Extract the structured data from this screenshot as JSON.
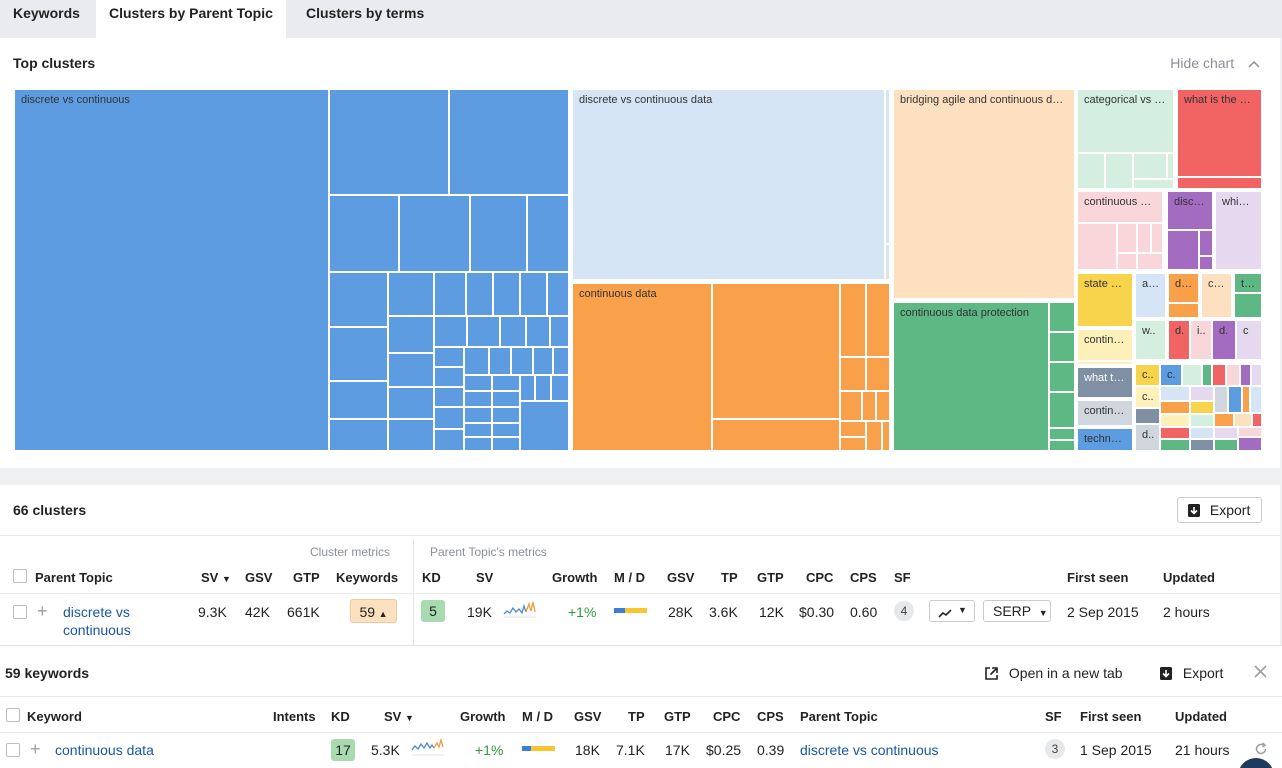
{
  "tabs": {
    "keywords": "Keywords",
    "clusters_parent": "Clusters by Parent Topic",
    "clusters_terms": "Clusters by terms"
  },
  "chart": {
    "title": "Top clusters",
    "hide_label": "Hide chart",
    "labels": {
      "t1": "discrete vs continuous",
      "t2": "discrete vs continuous data",
      "t3": "continuous data",
      "t4": "bridging agile and continuous d…",
      "t5": "continuous data protection",
      "t6": "categorical vs …",
      "t7": "what is the …",
      "t8": "continuous …",
      "t9": "disc…",
      "t10": "whi…",
      "t11": "state …",
      "t12": "a…",
      "t13": "d…",
      "t14": "c…",
      "t15": "t…",
      "t16": "contin…",
      "t17": "w..",
      "t18": "d.",
      "t19": "i..",
      "t20": "d.",
      "t21": "c",
      "t22": "what t…",
      "t23": "c..",
      "t24": "c.",
      "t25": "contin…",
      "t26": "c..",
      "t27": "techn…",
      "t28": "d.."
    }
  },
  "clusters": {
    "count_label": "66 clusters",
    "export_label": "Export",
    "cluster_metrics_label": "Cluster metrics",
    "pt_metrics_label": "Parent Topic's metrics",
    "headers": {
      "parent_topic": "Parent Topic",
      "sv": "SV",
      "gsv": "GSV",
      "gtp": "GTP",
      "keywords": "Keywords",
      "kd": "KD",
      "sv2": "SV",
      "growth": "Growth",
      "md": "M / D",
      "gsv2": "GSV",
      "tp": "TP",
      "gtp2": "GTP",
      "cpc": "CPC",
      "cps": "CPS",
      "sf": "SF",
      "first_seen": "First seen",
      "updated": "Updated"
    },
    "row": {
      "topic_line1": "discrete vs",
      "topic_line2": "continuous",
      "sv": "9.3K",
      "gsv": "42K",
      "gtp": "661K",
      "keywords": "59",
      "kd": "5",
      "sv2": "19K",
      "growth": "+1%",
      "gsv2": "28K",
      "tp": "3.6K",
      "gtp2": "12K",
      "cpc": "$0.30",
      "cps": "0.60",
      "sf": "4",
      "serp": "SERP",
      "first_seen": "2 Sep 2015",
      "updated": "2 hours"
    }
  },
  "keywords_panel": {
    "count_label": "59 keywords",
    "open_tab_label": "Open in a new tab",
    "export_label": "Export",
    "headers": {
      "keyword": "Keyword",
      "intents": "Intents",
      "kd": "KD",
      "sv": "SV",
      "growth": "Growth",
      "md": "M / D",
      "gsv": "GSV",
      "tp": "TP",
      "gtp": "GTP",
      "cpc": "CPC",
      "cps": "CPS",
      "parent_topic": "Parent Topic",
      "sf": "SF",
      "first_seen": "First seen",
      "updated": "Updated"
    },
    "row": {
      "keyword": "continuous data",
      "kd": "17",
      "sv": "5.3K",
      "growth": "+1%",
      "gsv": "18K",
      "tp": "7.1K",
      "gtp": "17K",
      "cpc": "$0.25",
      "cps": "0.39",
      "parent_topic": "discrete vs continuous",
      "sf": "3",
      "first_seen": "1 Sep 2015",
      "updated": "21 hours"
    }
  },
  "colors": {
    "blue": "#5d9ce0",
    "light_blue": "#d6e5f5",
    "orange": "#f9a14a",
    "peach": "#fde0c0",
    "green": "#5db883",
    "mint": "#d4efdf",
    "red": "#f26464",
    "pink": "#f8d6da",
    "purple": "#a36cc0",
    "lavender": "#e6d9ef",
    "yellow": "#f8d44c",
    "slate": "#7f8fa4",
    "kd_green": "#a8dcb0",
    "kw_badge": "#fde0c0"
  }
}
